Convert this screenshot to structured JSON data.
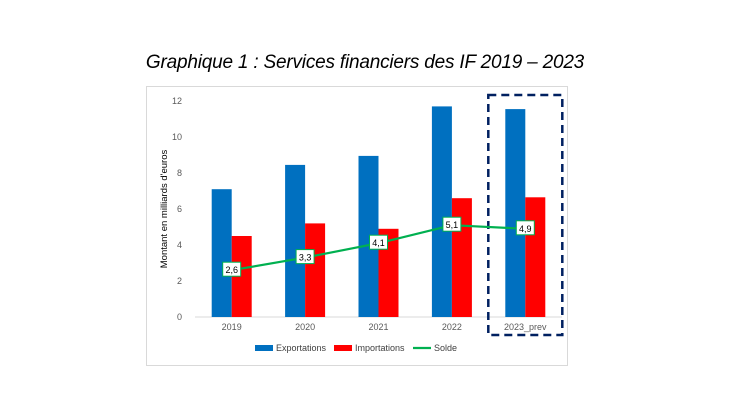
{
  "title": "Graphique 1 : Services financiers des IF 2019 – 2023",
  "chart_data": {
    "type": "bar",
    "title": "Graphique 1 : Services financiers des IF 2019 – 2023",
    "ylabel": "Montant en milliards d'euros",
    "xlabel": "",
    "ylim": [
      0,
      12
    ],
    "yticks": [
      0,
      2,
      4,
      6,
      8,
      10,
      12
    ],
    "grid": false,
    "legend_position": "bottom",
    "categories": [
      "2019",
      "2020",
      "2021",
      "2022",
      "2023_prev"
    ],
    "series": [
      {
        "name": "Exportations",
        "type": "bar",
        "color": "#0070c0",
        "values": [
          7.1,
          8.45,
          8.95,
          11.7,
          11.55
        ]
      },
      {
        "name": "Importations",
        "type": "bar",
        "color": "#ff0000",
        "values": [
          4.5,
          5.2,
          4.9,
          6.6,
          6.65
        ]
      },
      {
        "name": "Solde",
        "type": "line",
        "color": "#00b050",
        "values": [
          2.6,
          3.3,
          4.1,
          5.1,
          4.9
        ],
        "labels": [
          "2,6",
          "3,3",
          "4,1",
          "5,1",
          "4,9"
        ]
      }
    ],
    "highlight_category": "2023_prev",
    "highlight_color": "#002060"
  }
}
